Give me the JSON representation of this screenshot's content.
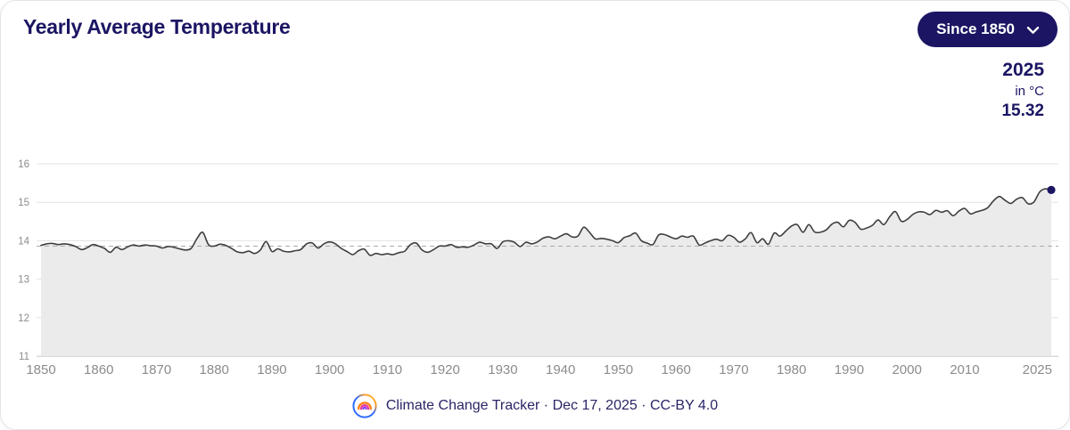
{
  "header": {
    "title": "Yearly Average Temperature",
    "range_button": {
      "label": "Since 1850",
      "icon": "chevron-down"
    }
  },
  "stat": {
    "year": "2025",
    "unit_label": "in °C",
    "value": "15.32"
  },
  "footer": {
    "attribution": "Climate Change Tracker · Dec 17, 2025  ·  CC-BY 4.0",
    "logo": "climate-change-tracker-rainbow-logo"
  },
  "colors": {
    "navy": "#1b1563",
    "line": "#3f3f3f",
    "area_fill": "#ebebeb",
    "grid": "#e3e3e3",
    "axis": "#d9d9d9",
    "dashed_baseline": "#ababab",
    "tick_label": "#8c8c8c"
  },
  "chart_data": {
    "type": "area",
    "title": "Yearly Average Temperature",
    "ylabel": "°C",
    "x_start": 1850,
    "x_end": 2025,
    "ylim": [
      11,
      16
    ],
    "y_ticks": [
      11,
      12,
      13,
      14,
      15,
      16
    ],
    "x_ticks": [
      1850,
      1860,
      1870,
      1880,
      1890,
      1900,
      1910,
      1920,
      1930,
      1940,
      1950,
      1960,
      1970,
      1980,
      1990,
      2000,
      2010,
      2025
    ],
    "grid": true,
    "baseline_dashed": 13.86,
    "end_point": {
      "year": 2025,
      "value": 15.32
    },
    "values": [
      13.88,
      13.92,
      13.93,
      13.9,
      13.92,
      13.9,
      13.85,
      13.77,
      13.82,
      13.9,
      13.86,
      13.8,
      13.7,
      13.83,
      13.77,
      13.84,
      13.89,
      13.86,
      13.89,
      13.87,
      13.86,
      13.81,
      13.85,
      13.83,
      13.79,
      13.76,
      13.8,
      14.05,
      14.22,
      13.9,
      13.86,
      13.91,
      13.88,
      13.8,
      13.71,
      13.69,
      13.73,
      13.67,
      13.76,
      13.98,
      13.72,
      13.79,
      13.73,
      13.71,
      13.74,
      13.77,
      13.92,
      13.94,
      13.81,
      13.92,
      13.97,
      13.92,
      13.8,
      13.72,
      13.64,
      13.74,
      13.78,
      13.62,
      13.67,
      13.64,
      13.66,
      13.64,
      13.69,
      13.73,
      13.9,
      13.94,
      13.76,
      13.7,
      13.77,
      13.86,
      13.86,
      13.9,
      13.83,
      13.84,
      13.83,
      13.89,
      13.96,
      13.92,
      13.92,
      13.8,
      13.97,
      14.0,
      13.96,
      13.85,
      13.96,
      13.92,
      13.97,
      14.07,
      14.1,
      14.05,
      14.12,
      14.18,
      14.1,
      14.12,
      14.35,
      14.22,
      14.05,
      14.06,
      14.04,
      14.0,
      13.95,
      14.08,
      14.13,
      14.2,
      14.0,
      13.94,
      13.9,
      14.15,
      14.16,
      14.1,
      14.05,
      14.12,
      14.09,
      14.12,
      13.89,
      13.94,
      14.0,
      14.04,
      14.0,
      14.14,
      14.09,
      13.96,
      14.05,
      14.21,
      13.95,
      14.05,
      13.91,
      14.2,
      14.12,
      14.25,
      14.38,
      14.42,
      14.22,
      14.42,
      14.23,
      14.22,
      14.28,
      14.43,
      14.48,
      14.36,
      14.53,
      14.48,
      14.3,
      14.33,
      14.4,
      14.54,
      14.42,
      14.62,
      14.76,
      14.51,
      14.55,
      14.68,
      14.75,
      14.74,
      14.68,
      14.79,
      14.74,
      14.78,
      14.65,
      14.77,
      14.84,
      14.7,
      14.75,
      14.79,
      14.86,
      15.04,
      15.15,
      15.05,
      14.97,
      15.08,
      15.12,
      14.96,
      15.01,
      15.27,
      15.35,
      15.32
    ]
  }
}
